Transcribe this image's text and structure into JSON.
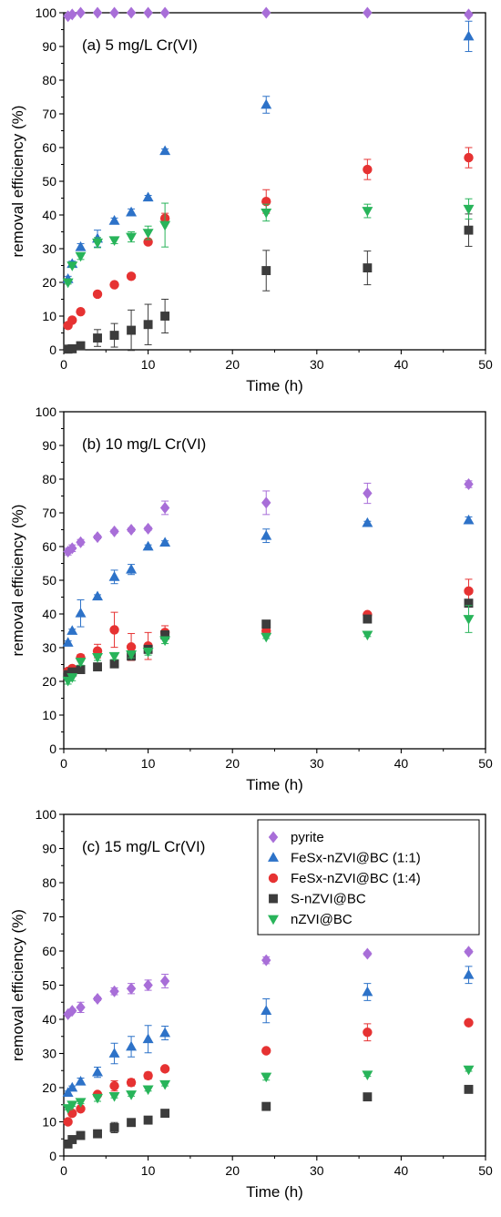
{
  "series_styles": [
    {
      "name": "pyrite",
      "marker": "diamond",
      "color": "#a86ed8"
    },
    {
      "name": "FeSx-nZVI@BC  (1:1)",
      "marker": "triangle-up",
      "color": "#2d72c8"
    },
    {
      "name": "FeSx-nZVI@BC  (1:4)",
      "marker": "circle",
      "color": "#e63232"
    },
    {
      "name": "S-nZVI@BC",
      "marker": "square",
      "color": "#3c3c3c"
    },
    {
      "name": "nZVI@BC",
      "marker": "triangle-down",
      "color": "#28b45a"
    }
  ],
  "chart_data": [
    {
      "type": "scatter",
      "panel_label": "(a) 5 mg/L Cr(VI)",
      "xlabel": "Time (h)",
      "ylabel": "removal efficiency (%)",
      "xlim": [
        0,
        50
      ],
      "ylim": [
        0,
        100
      ],
      "xticks": [
        "0",
        "10",
        "20",
        "30",
        "40",
        "50"
      ],
      "yticks": [
        "0",
        "10",
        "20",
        "30",
        "40",
        "50",
        "60",
        "70",
        "80",
        "90",
        "100"
      ],
      "x": [
        0.5,
        1,
        2,
        4,
        6,
        8,
        10,
        12,
        24,
        36,
        48
      ],
      "series": [
        {
          "name": "pyrite",
          "values": [
            99,
            99.5,
            100,
            100,
            100,
            100,
            100,
            100,
            100,
            100,
            99.5
          ],
          "errors": [
            0.5,
            0.5,
            0.3,
            0.3,
            0.3,
            0.3,
            0.3,
            0.3,
            0.3,
            0.3,
            0.5
          ]
        },
        {
          "name": "FeSx-nZVI@BC  (1:1)",
          "values": [
            21,
            25.5,
            30.5,
            33,
            38.3,
            40.8,
            45.2,
            59,
            72.7,
            null,
            93
          ],
          "errors": [
            0.8,
            0.8,
            1,
            2.5,
            0.8,
            1,
            0.6,
            0.6,
            2.5,
            0,
            4.5
          ]
        },
        {
          "name": "FeSx-nZVI@BC  (1:4)",
          "values": [
            7.2,
            8.8,
            11.3,
            16.5,
            19.3,
            21.8,
            32,
            39,
            44,
            53.5,
            57
          ],
          "errors": [
            0.5,
            0.5,
            0.5,
            0.5,
            0.5,
            0.5,
            0.8,
            1.5,
            3.5,
            3,
            3
          ]
        },
        {
          "name": "S-nZVI@BC",
          "values": [
            0.2,
            0.3,
            1.2,
            3.5,
            4.3,
            5.8,
            7.5,
            10,
            23.5,
            24.3,
            35.5
          ],
          "errors": [
            0.3,
            0.3,
            0.8,
            2.5,
            3.5,
            6,
            6,
            5,
            6,
            5,
            4.8
          ]
        },
        {
          "name": "nZVI@BC",
          "values": [
            20,
            25,
            27.8,
            31.8,
            32.5,
            33.5,
            34.7,
            37,
            40.7,
            41.2,
            41.8
          ],
          "errors": [
            0.5,
            0.5,
            1,
            1.5,
            1,
            1.5,
            2,
            6.5,
            2.5,
            2,
            3
          ]
        }
      ]
    },
    {
      "type": "scatter",
      "panel_label": "(b) 10 mg/L Cr(VI)",
      "xlabel": "Time (h)",
      "ylabel": "removal efficiency (%)",
      "xlim": [
        0,
        50
      ],
      "ylim": [
        0,
        100
      ],
      "xticks": [
        "0",
        "10",
        "20",
        "30",
        "40",
        "50"
      ],
      "yticks": [
        "0",
        "10",
        "20",
        "30",
        "40",
        "50",
        "60",
        "70",
        "80",
        "90",
        "100"
      ],
      "x": [
        0.5,
        1,
        2,
        4,
        6,
        8,
        10,
        12,
        24,
        36,
        48
      ],
      "series": [
        {
          "name": "pyrite",
          "values": [
            58.5,
            59.5,
            61.3,
            62.8,
            64.5,
            65,
            65.3,
            71.5,
            73,
            75.8,
            78.5
          ],
          "errors": [
            1,
            1,
            0.8,
            0.5,
            0.5,
            0.5,
            0.5,
            2,
            3.5,
            3,
            1
          ]
        },
        {
          "name": "FeSx-nZVI@BC  (1:1)",
          "values": [
            31.5,
            35,
            40.2,
            45.2,
            51,
            53.2,
            60,
            61.2,
            63.2,
            67,
            67.8
          ],
          "errors": [
            0.5,
            0.5,
            4,
            0.5,
            2,
            1.5,
            0.5,
            0.5,
            2,
            0.5,
            1
          ]
        },
        {
          "name": "FeSx-nZVI@BC  (1:4)",
          "values": [
            23,
            23.8,
            27,
            29,
            35.3,
            30.2,
            30.5,
            34.5,
            35,
            39.8,
            46.8
          ],
          "errors": [
            0.5,
            0.5,
            1,
            2,
            5.2,
            4,
            4,
            2,
            1,
            0.5,
            3.5
          ]
        },
        {
          "name": "S-nZVI@BC",
          "values": [
            22,
            22.8,
            23.5,
            24.3,
            25.2,
            27.5,
            29.5,
            33.8,
            37,
            38.5,
            43.2
          ],
          "errors": [
            0.5,
            0.5,
            0.5,
            0.5,
            0.5,
            0.5,
            0.8,
            0.8,
            0.5,
            0.5,
            0.8
          ]
        },
        {
          "name": "nZVI@BC",
          "values": [
            20.2,
            21.2,
            25.8,
            27.2,
            27.5,
            28,
            28.8,
            32.2,
            33.2,
            33.8,
            38.5
          ],
          "errors": [
            1,
            1,
            1,
            1,
            1,
            1,
            1,
            1,
            0.5,
            0.5,
            4
          ]
        }
      ]
    },
    {
      "type": "scatter",
      "panel_label": "(c) 15 mg/L Cr(VI)",
      "xlabel": "Time (h)",
      "ylabel": "removal efficiency (%)",
      "xlim": [
        0,
        50
      ],
      "ylim": [
        0,
        100
      ],
      "xticks": [
        "0",
        "10",
        "20",
        "30",
        "40",
        "50"
      ],
      "yticks": [
        "0",
        "10",
        "20",
        "30",
        "40",
        "50",
        "60",
        "70",
        "80",
        "90",
        "100"
      ],
      "legend_position": "top-right",
      "x": [
        0.5,
        1,
        2,
        4,
        6,
        8,
        10,
        12,
        24,
        36,
        48
      ],
      "series": [
        {
          "name": "pyrite",
          "values": [
            41.5,
            42.5,
            43.5,
            46,
            48.2,
            49,
            50,
            51.2,
            57.3,
            59.2,
            59.8
          ],
          "errors": [
            0.5,
            0.5,
            1.5,
            0.5,
            1,
            1.5,
            1.5,
            2,
            1,
            0.5,
            0.5
          ]
        },
        {
          "name": "FeSx-nZVI@BC  (1:1)",
          "values": [
            18.5,
            20,
            21.8,
            24.5,
            30,
            32,
            34.2,
            36,
            42.5,
            48,
            53
          ],
          "errors": [
            0.5,
            0.5,
            1,
            1.5,
            3,
            3,
            4,
            2,
            3.5,
            2.5,
            2.5
          ]
        },
        {
          "name": "FeSx-nZVI@BC  (1:4)",
          "values": [
            10,
            12.5,
            13.8,
            18,
            20.5,
            21.5,
            23.5,
            25.5,
            30.8,
            36.2,
            39
          ],
          "errors": [
            0.5,
            0.5,
            0.5,
            0.5,
            1.5,
            1,
            1,
            0.5,
            0.5,
            2.5,
            0.5
          ]
        },
        {
          "name": "S-nZVI@BC",
          "values": [
            3.5,
            4.8,
            6,
            6.5,
            8.3,
            9.8,
            10.5,
            12.5,
            14.5,
            17.3,
            19.5
          ],
          "errors": [
            0.5,
            0.5,
            1,
            0.5,
            1.5,
            0.5,
            0.5,
            0.5,
            0.5,
            1,
            0.5
          ]
        },
        {
          "name": "nZVI@BC",
          "values": [
            14,
            15,
            15.8,
            17,
            17.5,
            18,
            19.5,
            21,
            23.2,
            23.8,
            25.3
          ],
          "errors": [
            0.5,
            0.5,
            0.5,
            1,
            0.5,
            0.5,
            0.5,
            0.5,
            1,
            0.5,
            0.5
          ]
        }
      ]
    }
  ]
}
